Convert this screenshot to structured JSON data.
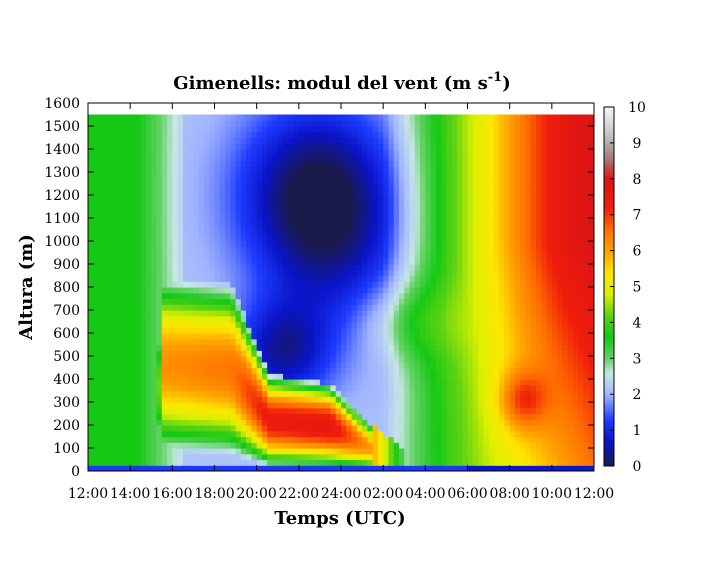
{
  "chart_data": {
    "type": "heatmap",
    "title_main": "Gimenells: modul del vent (m s",
    "title_sup": "-1",
    "title_close": ")",
    "xlabel": "Temps (UTC)",
    "ylabel": "Altura (m)",
    "x_ticks": [
      "12:00",
      "14:00",
      "16:00",
      "18:00",
      "20:00",
      "22:00",
      "24:00",
      "02:00",
      "04:00",
      "06:00",
      "08:00",
      "10:00",
      "12:00"
    ],
    "xlim_hours": [
      0,
      24
    ],
    "ylim": [
      0,
      1600
    ],
    "y_ticks": [
      0,
      100,
      200,
      300,
      400,
      500,
      600,
      700,
      800,
      900,
      1000,
      1100,
      1200,
      1300,
      1400,
      1500,
      1600
    ],
    "data_top_height": 1550,
    "colorbar": {
      "ticks": [
        0,
        1,
        2,
        3,
        4,
        5,
        6,
        7,
        8,
        9,
        10
      ],
      "range": [
        0,
        10
      ],
      "stops": [
        {
          "v": 0,
          "color": "#1a1a4a"
        },
        {
          "v": 0.7,
          "color": "#0a14c8"
        },
        {
          "v": 1.3,
          "color": "#1e3cff"
        },
        {
          "v": 2.0,
          "color": "#a0b4ff"
        },
        {
          "v": 2.6,
          "color": "#c8e6e6"
        },
        {
          "v": 3.0,
          "color": "#64d264"
        },
        {
          "v": 3.6,
          "color": "#14c814"
        },
        {
          "v": 4.2,
          "color": "#5ad214"
        },
        {
          "v": 4.8,
          "color": "#dcf000"
        },
        {
          "v": 5.4,
          "color": "#ffe600"
        },
        {
          "v": 6.0,
          "color": "#ffa000"
        },
        {
          "v": 6.6,
          "color": "#ff6e00"
        },
        {
          "v": 7.2,
          "color": "#f01e0a"
        },
        {
          "v": 8.0,
          "color": "#dc1414"
        },
        {
          "v": 8.6,
          "color": "#a08080"
        },
        {
          "v": 9.3,
          "color": "#c8c8c8"
        },
        {
          "v": 10,
          "color": "#f5f5f5"
        }
      ]
    },
    "grid": false,
    "description_of_field": {
      "low_level_jet": [
        {
          "t": 3.6,
          "top": 860,
          "peak": 6.2
        },
        {
          "t": 6.8,
          "top": 820,
          "peak": 6.5
        },
        {
          "t": 8.6,
          "top": 420,
          "peak": 7.4
        },
        {
          "t": 11.5,
          "top": 380,
          "peak": 7.6
        },
        {
          "t": 13.5,
          "top": 200,
          "peak": 6.0
        }
      ],
      "upper_minimum": {
        "t": 10.5,
        "h": 1200,
        "value": 0.5
      },
      "afternoon_maximum": {
        "t": 22.5,
        "h": 1100,
        "value": 6.5
      }
    }
  }
}
